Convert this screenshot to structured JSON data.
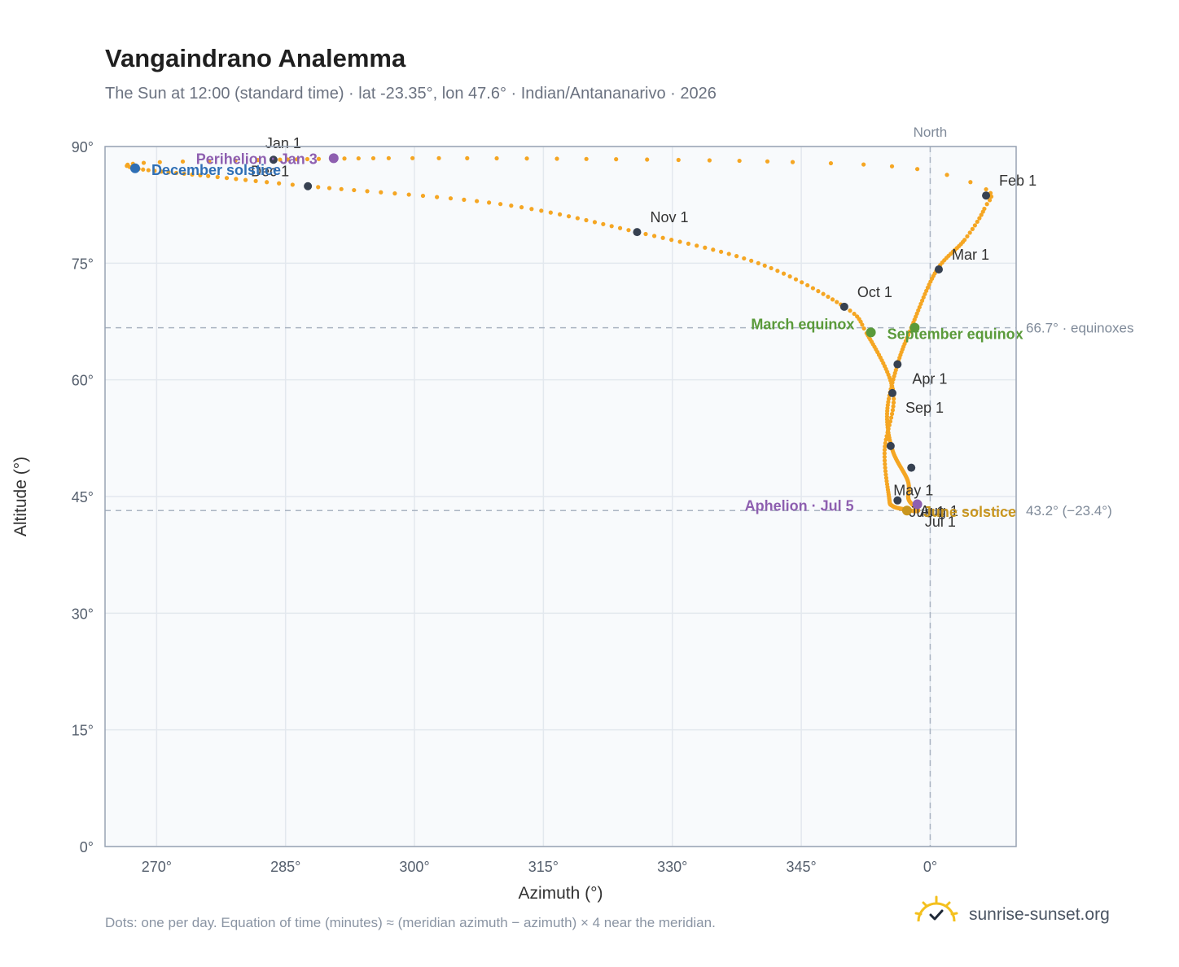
{
  "title": "Vangaindrano Analemma",
  "subtitle": "The Sun at 12:00 (standard time) · lat -23.35°, lon 47.6° · Indian/Antananarivo · 2026",
  "footnote": "Dots: one per day. Equation of time (minutes) ≈ (meridian azimuth − azimuth) × 4 near the meridian.",
  "brand": {
    "name": "sunrise-sunset.org",
    "icon": "sun-check-icon"
  },
  "colors": {
    "curve": "#f5a623",
    "month_marker": "#374151",
    "equinox": "#5a9a3a",
    "june_solstice": "#c9961f",
    "december_solstice": "#2f6fb5",
    "perihelion_aphelion": "#8e5fb0",
    "reference": "#aab4c2",
    "plot_bg": "#f8fafc",
    "grid": "#e3e8ee"
  },
  "chart_data": {
    "type": "scatter",
    "title": "Vangaindrano Analemma",
    "xlabel": "Azimuth (°)",
    "ylabel": "Altitude (°)",
    "xlim": [
      264,
      370
    ],
    "ylim": [
      0,
      90
    ],
    "x_tick_values": [
      270,
      285,
      300,
      315,
      330,
      345,
      360
    ],
    "x_ticks": [
      "270°",
      "285°",
      "300°",
      "315°",
      "330°",
      "345°",
      "0°"
    ],
    "y_tick_values": [
      0,
      15,
      30,
      45,
      60,
      75,
      90
    ],
    "y_ticks": [
      "0°",
      "15°",
      "30°",
      "45°",
      "60°",
      "75°",
      "90°"
    ],
    "grid": true,
    "meridian": {
      "azimuth": 360,
      "label": "North"
    },
    "reference_lines": [
      {
        "altitude": 66.7,
        "label": "66.7° · equinoxes"
      },
      {
        "altitude": 43.2,
        "label": "43.2° (−23.4°)"
      }
    ],
    "path_anchors": [
      {
        "day": 1,
        "az": 283.6,
        "alt": 88.3
      },
      {
        "day": 11,
        "az": 297.0,
        "alt": 88.5
      },
      {
        "day": 18,
        "az": 320.0,
        "alt": 88.4
      },
      {
        "day": 25,
        "az": 344.0,
        "alt": 88.0
      },
      {
        "day": 29,
        "az": 358.5,
        "alt": 87.1
      },
      {
        "day": 32,
        "az": 366.5,
        "alt": 84.5
      },
      {
        "day": 37,
        "az": 366.3,
        "alt": 82.0
      },
      {
        "day": 46,
        "az": 364.0,
        "alt": 78.0
      },
      {
        "day": 60,
        "az": 360.7,
        "alt": 74.0
      },
      {
        "day": 79,
        "az": 357.8,
        "alt": 66.7
      },
      {
        "day": 91,
        "az": 356.2,
        "alt": 62.0
      },
      {
        "day": 106,
        "az": 355.0,
        "alt": 56.0
      },
      {
        "day": 121,
        "az": 355.6,
        "alt": 51.0
      },
      {
        "day": 141,
        "az": 357.4,
        "alt": 47.0
      },
      {
        "day": 156,
        "az": 357.5,
        "alt": 44.6
      },
      {
        "day": 172,
        "az": 358.6,
        "alt": 43.2
      },
      {
        "day": 182,
        "az": 357.3,
        "alt": 43.3
      },
      {
        "day": 199,
        "az": 355.6,
        "alt": 43.8
      },
      {
        "day": 213,
        "az": 355.2,
        "alt": 45.0
      },
      {
        "day": 228,
        "az": 354.7,
        "alt": 51.0
      },
      {
        "day": 244,
        "az": 355.7,
        "alt": 58.5
      },
      {
        "day": 266,
        "az": 352.6,
        "alt": 66.0
      },
      {
        "day": 274,
        "az": 350.0,
        "alt": 69.4
      },
      {
        "day": 290,
        "az": 340.0,
        "alt": 75.0
      },
      {
        "day": 305,
        "az": 325.9,
        "alt": 79.0
      },
      {
        "day": 320,
        "az": 310.0,
        "alt": 82.6
      },
      {
        "day": 335,
        "az": 287.6,
        "alt": 84.9
      },
      {
        "day": 344,
        "az": 276.0,
        "alt": 86.2
      },
      {
        "day": 355,
        "az": 267.5,
        "alt": 87.2
      },
      {
        "day": 360,
        "az": 268.5,
        "alt": 87.9
      },
      {
        "day": 366,
        "az": 283.6,
        "alt": 88.3
      }
    ],
    "month_markers": [
      {
        "label": "Jan 1",
        "az": 283.6,
        "alt": 88.3
      },
      {
        "label": "Feb 1",
        "az": 366.5,
        "alt": 83.7
      },
      {
        "label": "Mar 1",
        "az": 361.0,
        "alt": 74.2
      },
      {
        "label": "Apr 1",
        "az": 356.2,
        "alt": 62.0
      },
      {
        "label": "May 1",
        "az": 357.8,
        "alt": 48.7
      },
      {
        "label": "Jun 1",
        "az": 356.2,
        "alt": 44.5
      },
      {
        "label": "Jul 1",
        "az": 357.3,
        "alt": 43.2
      },
      {
        "label": "Aug 1",
        "az": 355.4,
        "alt": 51.5
      },
      {
        "label": "Sep 1",
        "az": 355.6,
        "alt": 58.3
      },
      {
        "label": "Oct 1",
        "az": 350.0,
        "alt": 69.4
      },
      {
        "label": "Nov 1",
        "az": 325.9,
        "alt": 79.0
      },
      {
        "label": "Dec 1",
        "az": 287.6,
        "alt": 84.9
      }
    ],
    "events": [
      {
        "label": "December solstice",
        "az": 267.5,
        "alt": 87.2,
        "color_key": "december_solstice"
      },
      {
        "label": "Perihelion · Jan 3",
        "az": 290.6,
        "alt": 88.5,
        "color_key": "perihelion_aphelion"
      },
      {
        "label": "March equinox",
        "az": 358.2,
        "alt": 66.7,
        "color_key": "equinox"
      },
      {
        "label": "September equinox",
        "az": 353.1,
        "alt": 66.1,
        "color_key": "equinox"
      },
      {
        "label": "June solstice",
        "az": 357.3,
        "alt": 43.2,
        "color_key": "june_solstice"
      },
      {
        "label": "Aphelion · Jul 5",
        "az": 358.5,
        "alt": 44.0,
        "color_key": "perihelion_aphelion"
      }
    ]
  }
}
